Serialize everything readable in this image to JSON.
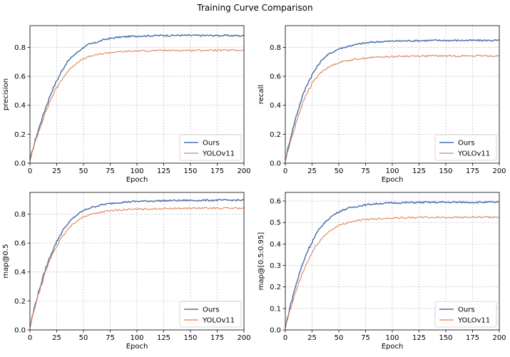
{
  "suptitle": "Training Curve Comparison",
  "colors": {
    "ours": "#4C72B0",
    "yolo": "#DD8452",
    "grid": "#b0b0b0"
  },
  "chart_data": [
    {
      "type": "line",
      "id": "precision",
      "xlabel": "Epoch",
      "ylabel": "precision",
      "xlim": [
        0,
        200
      ],
      "ylim": [
        0,
        0.95
      ],
      "xticks": [
        0,
        25,
        50,
        75,
        100,
        125,
        150,
        175,
        200
      ],
      "yticks": [
        0.0,
        0.2,
        0.4,
        0.6,
        0.8
      ],
      "ytick_labels": [
        "0.0",
        "0.2",
        "0.4",
        "0.6",
        "0.8"
      ],
      "grid": true,
      "legend": "lower-right",
      "series": [
        {
          "name": "Ours",
          "x": [
            0,
            5,
            10,
            15,
            20,
            25,
            30,
            35,
            40,
            45,
            50,
            55,
            60,
            70,
            80,
            90,
            100,
            120,
            140,
            160,
            180,
            200
          ],
          "y": [
            0.02,
            0.16,
            0.28,
            0.39,
            0.49,
            0.57,
            0.64,
            0.7,
            0.74,
            0.77,
            0.8,
            0.82,
            0.83,
            0.855,
            0.868,
            0.874,
            0.878,
            0.882,
            0.883,
            0.882,
            0.882,
            0.88
          ]
        },
        {
          "name": "YOLOv11",
          "x": [
            0,
            5,
            10,
            15,
            20,
            25,
            30,
            35,
            40,
            45,
            50,
            55,
            60,
            70,
            80,
            90,
            100,
            120,
            140,
            160,
            180,
            200
          ],
          "y": [
            0.02,
            0.15,
            0.26,
            0.36,
            0.45,
            0.52,
            0.58,
            0.63,
            0.67,
            0.7,
            0.72,
            0.735,
            0.745,
            0.76,
            0.768,
            0.772,
            0.775,
            0.778,
            0.779,
            0.78,
            0.78,
            0.78
          ]
        }
      ]
    },
    {
      "type": "line",
      "id": "recall",
      "xlabel": "Epoch",
      "ylabel": "recall",
      "xlim": [
        0,
        200
      ],
      "ylim": [
        0,
        0.95
      ],
      "xticks": [
        0,
        25,
        50,
        75,
        100,
        125,
        150,
        175,
        200
      ],
      "yticks": [
        0.0,
        0.2,
        0.4,
        0.6,
        0.8
      ],
      "ytick_labels": [
        "0.0",
        "0.2",
        "0.4",
        "0.6",
        "0.8"
      ],
      "grid": true,
      "legend": "lower-right",
      "series": [
        {
          "name": "Ours",
          "x": [
            0,
            5,
            10,
            15,
            20,
            25,
            30,
            35,
            40,
            45,
            50,
            55,
            60,
            70,
            80,
            90,
            100,
            120,
            140,
            160,
            180,
            200
          ],
          "y": [
            0.02,
            0.18,
            0.32,
            0.44,
            0.54,
            0.61,
            0.67,
            0.72,
            0.75,
            0.77,
            0.79,
            0.8,
            0.81,
            0.825,
            0.835,
            0.84,
            0.843,
            0.846,
            0.848,
            0.848,
            0.848,
            0.848
          ]
        },
        {
          "name": "YOLOv11",
          "x": [
            0,
            5,
            10,
            15,
            20,
            25,
            30,
            35,
            40,
            45,
            50,
            55,
            60,
            70,
            80,
            90,
            100,
            120,
            140,
            160,
            180,
            200
          ],
          "y": [
            0.02,
            0.15,
            0.28,
            0.39,
            0.48,
            0.55,
            0.6,
            0.64,
            0.66,
            0.68,
            0.695,
            0.705,
            0.712,
            0.722,
            0.73,
            0.734,
            0.737,
            0.74,
            0.741,
            0.741,
            0.741,
            0.741
          ]
        }
      ]
    },
    {
      "type": "line",
      "id": "map50",
      "xlabel": "Epoch",
      "ylabel": "map@0.5",
      "xlim": [
        0,
        200
      ],
      "ylim": [
        0,
        0.95
      ],
      "xticks": [
        0,
        25,
        50,
        75,
        100,
        125,
        150,
        175,
        200
      ],
      "yticks": [
        0.0,
        0.2,
        0.4,
        0.6,
        0.8
      ],
      "ytick_labels": [
        "0.0",
        "0.2",
        "0.4",
        "0.6",
        "0.8"
      ],
      "grid": true,
      "legend": "lower-right",
      "series": [
        {
          "name": "Ours",
          "x": [
            0,
            5,
            10,
            15,
            20,
            25,
            30,
            35,
            40,
            45,
            50,
            55,
            60,
            70,
            80,
            90,
            100,
            120,
            140,
            160,
            180,
            200
          ],
          "y": [
            0.02,
            0.18,
            0.31,
            0.43,
            0.53,
            0.61,
            0.68,
            0.73,
            0.77,
            0.8,
            0.825,
            0.84,
            0.852,
            0.868,
            0.878,
            0.884,
            0.888,
            0.892,
            0.894,
            0.895,
            0.896,
            0.896
          ]
        },
        {
          "name": "YOLOv11",
          "x": [
            0,
            5,
            10,
            15,
            20,
            25,
            30,
            35,
            40,
            45,
            50,
            55,
            60,
            70,
            80,
            90,
            100,
            120,
            140,
            160,
            180,
            200
          ],
          "y": [
            0.02,
            0.17,
            0.29,
            0.41,
            0.51,
            0.58,
            0.64,
            0.69,
            0.73,
            0.76,
            0.78,
            0.795,
            0.805,
            0.818,
            0.826,
            0.831,
            0.834,
            0.838,
            0.84,
            0.841,
            0.841,
            0.841
          ]
        }
      ]
    },
    {
      "type": "line",
      "id": "map5095",
      "xlabel": "Epoch",
      "ylabel": "map@[0.5:0.95]",
      "xlim": [
        0,
        200
      ],
      "ylim": [
        0,
        0.64
      ],
      "xticks": [
        0,
        25,
        50,
        75,
        100,
        125,
        150,
        175,
        200
      ],
      "yticks": [
        0.0,
        0.1,
        0.2,
        0.3,
        0.4,
        0.5,
        0.6
      ],
      "ytick_labels": [
        "0.0",
        "0.1",
        "0.2",
        "0.3",
        "0.4",
        "0.5",
        "0.6"
      ],
      "grid": true,
      "legend": "lower-right",
      "series": [
        {
          "name": "Ours",
          "x": [
            0,
            5,
            10,
            15,
            20,
            25,
            30,
            35,
            40,
            45,
            50,
            55,
            60,
            70,
            80,
            90,
            100,
            120,
            140,
            160,
            180,
            200
          ],
          "y": [
            0.01,
            0.12,
            0.21,
            0.29,
            0.36,
            0.41,
            0.455,
            0.49,
            0.515,
            0.535,
            0.55,
            0.56,
            0.568,
            0.578,
            0.585,
            0.589,
            0.591,
            0.593,
            0.594,
            0.594,
            0.594,
            0.594
          ]
        },
        {
          "name": "YOLOv11",
          "x": [
            0,
            5,
            10,
            15,
            20,
            25,
            30,
            35,
            40,
            45,
            50,
            55,
            60,
            70,
            80,
            90,
            100,
            120,
            140,
            160,
            180,
            200
          ],
          "y": [
            0.01,
            0.1,
            0.18,
            0.25,
            0.31,
            0.36,
            0.4,
            0.43,
            0.455,
            0.472,
            0.485,
            0.495,
            0.502,
            0.511,
            0.516,
            0.519,
            0.521,
            0.523,
            0.524,
            0.524,
            0.524,
            0.524
          ]
        }
      ]
    }
  ]
}
